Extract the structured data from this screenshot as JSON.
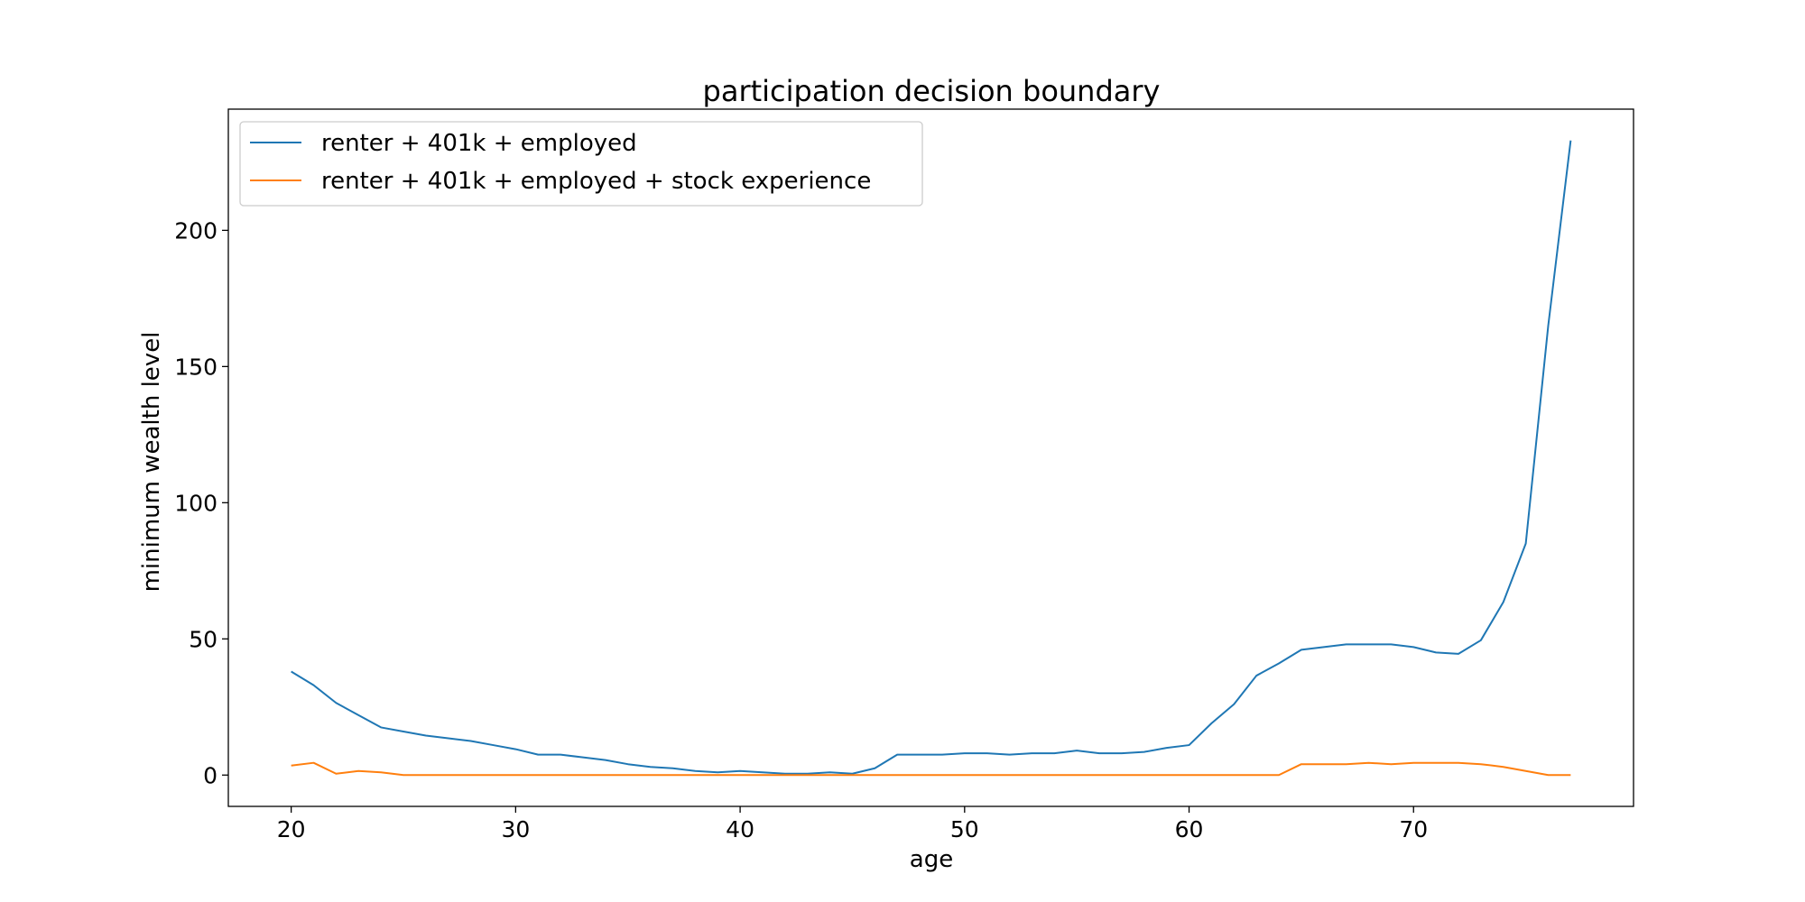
{
  "chart_data": {
    "type": "line",
    "title": "participation decision boundary",
    "xlabel": "age",
    "ylabel": "minimum wealth level",
    "xlim": [
      17.2,
      79.8
    ],
    "ylim": [
      -11.5,
      244.5
    ],
    "xticks": [
      20,
      30,
      40,
      50,
      60,
      70
    ],
    "yticks": [
      0,
      50,
      100,
      150,
      200
    ],
    "grid": false,
    "legend_position": "top-left",
    "x": [
      20,
      21,
      22,
      23,
      24,
      25,
      26,
      27,
      28,
      29,
      30,
      31,
      32,
      33,
      34,
      35,
      36,
      37,
      38,
      39,
      40,
      41,
      42,
      43,
      44,
      45,
      46,
      47,
      48,
      49,
      50,
      51,
      52,
      53,
      54,
      55,
      56,
      57,
      58,
      59,
      60,
      61,
      62,
      63,
      64,
      65,
      66,
      67,
      68,
      69,
      70,
      71,
      72,
      73,
      74,
      75,
      76,
      77
    ],
    "series": [
      {
        "name": "renter + 401k + employed",
        "color": "#1f77b4",
        "values": [
          38,
          33,
          26.5,
          22,
          17.5,
          16,
          14.5,
          13.5,
          12.5,
          11,
          9.5,
          7.5,
          7.5,
          6.5,
          5.5,
          4,
          3,
          2.5,
          1.5,
          1,
          1.5,
          1,
          0.5,
          0.5,
          1,
          0.5,
          2.5,
          7.5,
          7.5,
          7.5,
          8,
          8,
          7.5,
          8,
          8,
          9,
          8,
          8,
          8.5,
          10,
          11,
          19,
          26,
          36.5,
          41,
          46,
          47,
          48,
          48,
          48,
          47,
          45,
          44.5,
          49.5,
          63.5,
          85,
          165,
          233
        ]
      },
      {
        "name": "renter + 401k + employed + stock experience",
        "color": "#ff7f0e",
        "values": [
          3.5,
          4.5,
          0.5,
          1.5,
          1,
          0,
          0,
          0,
          0,
          0,
          0,
          0,
          0,
          0,
          0,
          0,
          0,
          0,
          0,
          0,
          0,
          0,
          0,
          0,
          0,
          0,
          0,
          0,
          0,
          0,
          0,
          0,
          0,
          0,
          0,
          0,
          0,
          0,
          0,
          0,
          0,
          0,
          0,
          0,
          0,
          4,
          4,
          4,
          4.5,
          4,
          4.5,
          4.5,
          4.5,
          4,
          3,
          1.5,
          0,
          0
        ]
      }
    ]
  }
}
